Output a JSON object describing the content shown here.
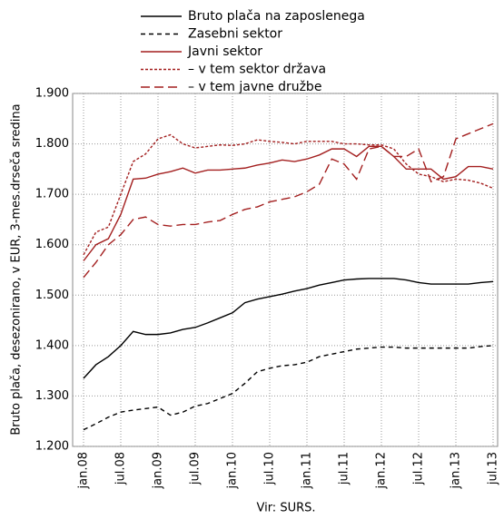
{
  "chart_data": {
    "type": "line",
    "y_label": "Bruto plača, desezonirano, v EUR, 3-mes.drseča sredina",
    "source": "Vir: SURS.",
    "categories": [
      "jan.08",
      null,
      null,
      "jul.08",
      null,
      null,
      "jan.09",
      null,
      null,
      "jul.09",
      null,
      null,
      "jan.10",
      null,
      null,
      "jul.10",
      null,
      null,
      "jan.11",
      null,
      null,
      "jul.11",
      null,
      null,
      "jan.12",
      null,
      null,
      "jul.12",
      null,
      null,
      "jan.13",
      null,
      null,
      "jul.13"
    ],
    "ylim": [
      1200,
      1900
    ],
    "yticks": [
      {
        "value": 1200,
        "label": "1.200"
      },
      {
        "value": 1300,
        "label": "1.300"
      },
      {
        "value": 1400,
        "label": "1.400"
      },
      {
        "value": 1500,
        "label": "1.500"
      },
      {
        "value": 1600,
        "label": "1.600"
      },
      {
        "value": 1700,
        "label": "1.700"
      },
      {
        "value": 1800,
        "label": "1.800"
      },
      {
        "value": 1900,
        "label": "1.900"
      }
    ],
    "grid": true,
    "series": [
      {
        "name": "Bruto plača na zaposlenega",
        "color": "#000000",
        "dash": "solid",
        "values": [
          1335,
          1362,
          1378,
          1400,
          1428,
          1422,
          1422,
          1425,
          1432,
          1436,
          1445,
          1455,
          1465,
          1485,
          1492,
          1497,
          1502,
          1508,
          1513,
          1520,
          1525,
          1530,
          1532,
          1533,
          1533,
          1533,
          1530,
          1525,
          1522,
          1522,
          1522,
          1522,
          1525,
          1527
        ]
      },
      {
        "name": "Zasebni sektor",
        "color": "#000000",
        "dash": "dashed",
        "values": [
          1233,
          1245,
          1258,
          1268,
          1272,
          1275,
          1278,
          1262,
          1268,
          1280,
          1285,
          1295,
          1305,
          1325,
          1348,
          1355,
          1360,
          1362,
          1367,
          1378,
          1383,
          1388,
          1393,
          1395,
          1397,
          1397,
          1395,
          1395,
          1395,
          1395,
          1395,
          1395,
          1398,
          1400
        ]
      },
      {
        "name": "Javni sektor",
        "color": "#a31f1f",
        "dash": "solid",
        "values": [
          1568,
          1600,
          1612,
          1660,
          1730,
          1732,
          1740,
          1745,
          1752,
          1742,
          1748,
          1748,
          1750,
          1752,
          1758,
          1762,
          1768,
          1765,
          1770,
          1778,
          1790,
          1790,
          1775,
          1795,
          1795,
          1775,
          1750,
          1750,
          1750,
          1730,
          1735,
          1755,
          1755,
          1750
        ]
      },
      {
        "name": "– v tem sektor država",
        "color": "#a31f1f",
        "dash": "dotted",
        "values": [
          1580,
          1625,
          1635,
          1700,
          1765,
          1780,
          1810,
          1818,
          1800,
          1792,
          1795,
          1798,
          1797,
          1800,
          1808,
          1805,
          1803,
          1800,
          1805,
          1805,
          1805,
          1800,
          1800,
          1798,
          1798,
          1790,
          1760,
          1740,
          1735,
          1725,
          1730,
          1728,
          1722,
          1712
        ]
      },
      {
        "name": "– v tem javne družbe",
        "color": "#a31f1f",
        "dash": "longdash",
        "values": [
          1535,
          1565,
          1600,
          1620,
          1650,
          1655,
          1640,
          1637,
          1640,
          1640,
          1645,
          1648,
          1660,
          1670,
          1675,
          1685,
          1690,
          1695,
          1705,
          1720,
          1770,
          1760,
          1730,
          1790,
          1795,
          1775,
          1775,
          1790,
          1725,
          1735,
          1810,
          1820,
          1830,
          1840
        ]
      }
    ]
  }
}
